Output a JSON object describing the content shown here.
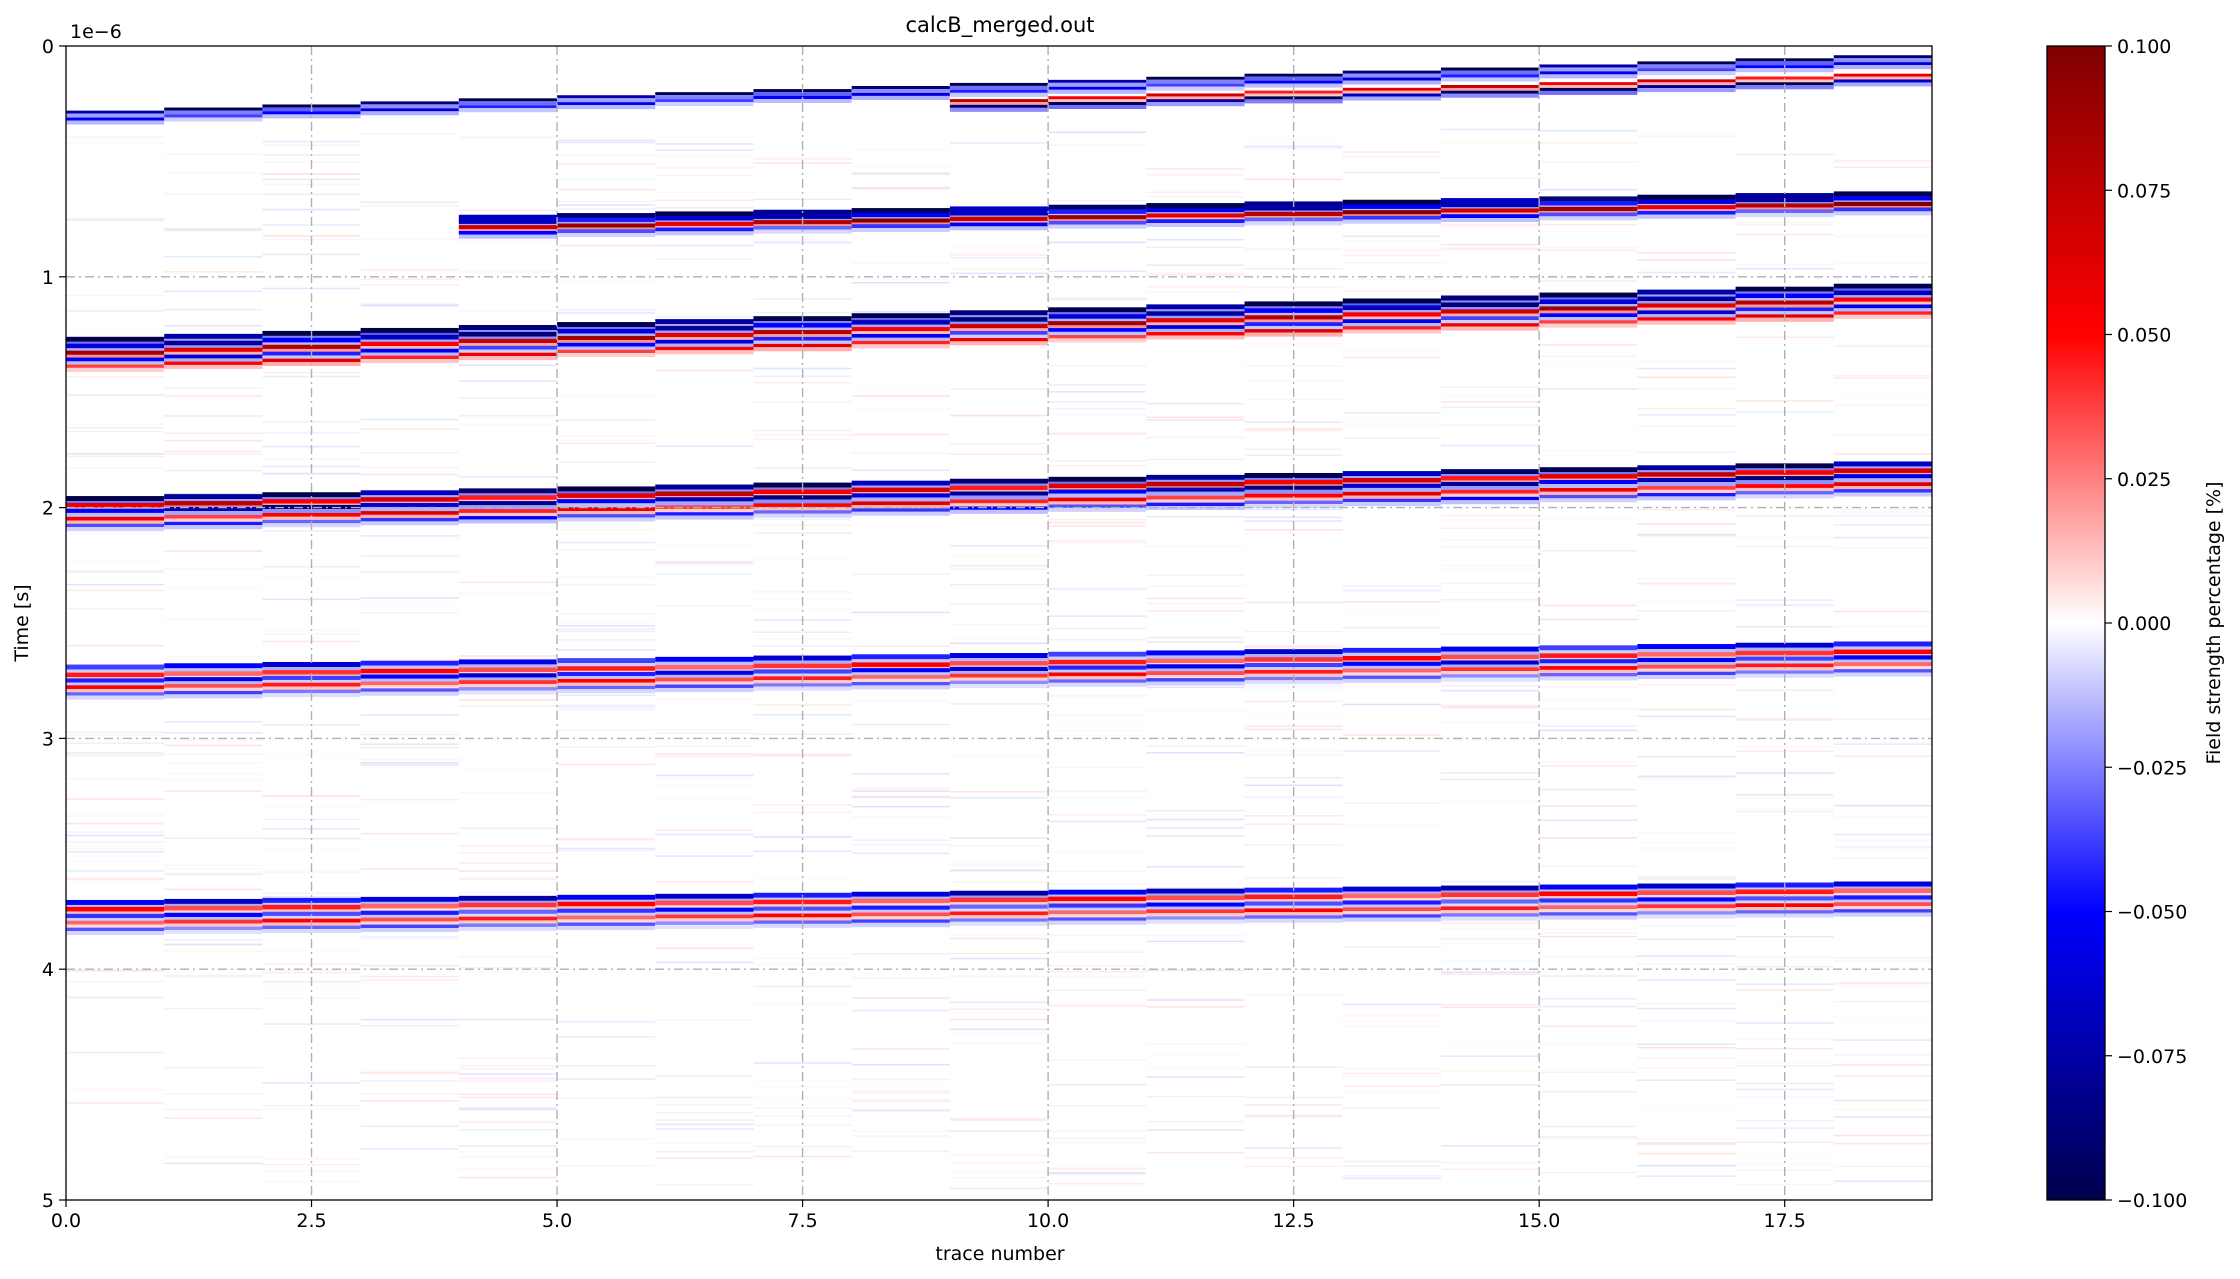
{
  "chart_data": {
    "type": "heatmap",
    "title": "calcB_merged.out",
    "xlabel": "trace number",
    "ylabel": "Time [s]",
    "y_offset_text": "1e−6",
    "xlim": [
      0,
      19
    ],
    "ylim": [
      5,
      0
    ],
    "x_ticks": [
      0.0,
      2.5,
      5.0,
      7.5,
      10.0,
      12.5,
      15.0,
      17.5
    ],
    "x_tick_labels": [
      "0.0",
      "2.5",
      "5.0",
      "7.5",
      "10.0",
      "12.5",
      "15.0",
      "17.5"
    ],
    "y_ticks": [
      0,
      1,
      2,
      3,
      4,
      5
    ],
    "y_tick_labels": [
      "0",
      "1",
      "2",
      "3",
      "4",
      "5"
    ],
    "grid": true,
    "colormap": "seismic",
    "colorbar": {
      "label": "Field strength percentage [%]",
      "range": [
        -0.1,
        0.1
      ],
      "ticks": [
        0.1,
        0.075,
        0.05,
        0.025,
        0.0,
        -0.025,
        -0.05,
        -0.075,
        -0.1
      ],
      "tick_labels": [
        "0.100",
        "0.075",
        "0.050",
        "0.025",
        "0.000",
        "−0.025",
        "−0.050",
        "−0.075",
        "−0.100"
      ]
    },
    "traces": 19,
    "events": [
      {
        "t0": 0.28,
        "t1": 0.04,
        "pattern": [
          [
            0,
            -0.1
          ],
          [
            0.3,
            -0.05
          ]
        ]
      },
      {
        "t0": 0.34,
        "t1": 0.12,
        "from_trace": 9,
        "pattern": [
          [
            0,
            0.06
          ],
          [
            0.25,
            -0.09
          ]
        ]
      },
      {
        "t0": 0.76,
        "t1": 0.63,
        "from_trace": 4,
        "pattern": [
          [
            0,
            -0.09
          ],
          [
            0.2,
            -0.06
          ],
          [
            0.45,
            0.08
          ],
          [
            0.7,
            -0.04
          ]
        ]
      },
      {
        "t0": 1.26,
        "t1": 1.03,
        "pattern": [
          [
            0,
            -0.1
          ],
          [
            0.3,
            -0.07
          ],
          [
            0.6,
            0.07
          ],
          [
            0.9,
            -0.05
          ],
          [
            1.2,
            0.05
          ]
        ]
      },
      {
        "t0": 1.95,
        "t1": 1.8,
        "pattern": [
          [
            0,
            -0.09
          ],
          [
            0.3,
            0.06
          ],
          [
            0.55,
            -0.07
          ],
          [
            0.9,
            0.05
          ],
          [
            1.2,
            -0.04
          ]
        ]
      },
      {
        "t0": 2.68,
        "t1": 2.58,
        "pattern": [
          [
            0,
            -0.05
          ],
          [
            0.35,
            0.04
          ],
          [
            0.6,
            -0.05
          ],
          [
            0.9,
            0.04
          ],
          [
            1.2,
            -0.03
          ]
        ]
      },
      {
        "t0": 3.7,
        "t1": 3.62,
        "pattern": [
          [
            0,
            -0.06
          ],
          [
            0.3,
            0.04
          ],
          [
            0.6,
            -0.04
          ],
          [
            0.9,
            0.04
          ],
          [
            1.2,
            -0.03
          ]
        ]
      }
    ]
  }
}
